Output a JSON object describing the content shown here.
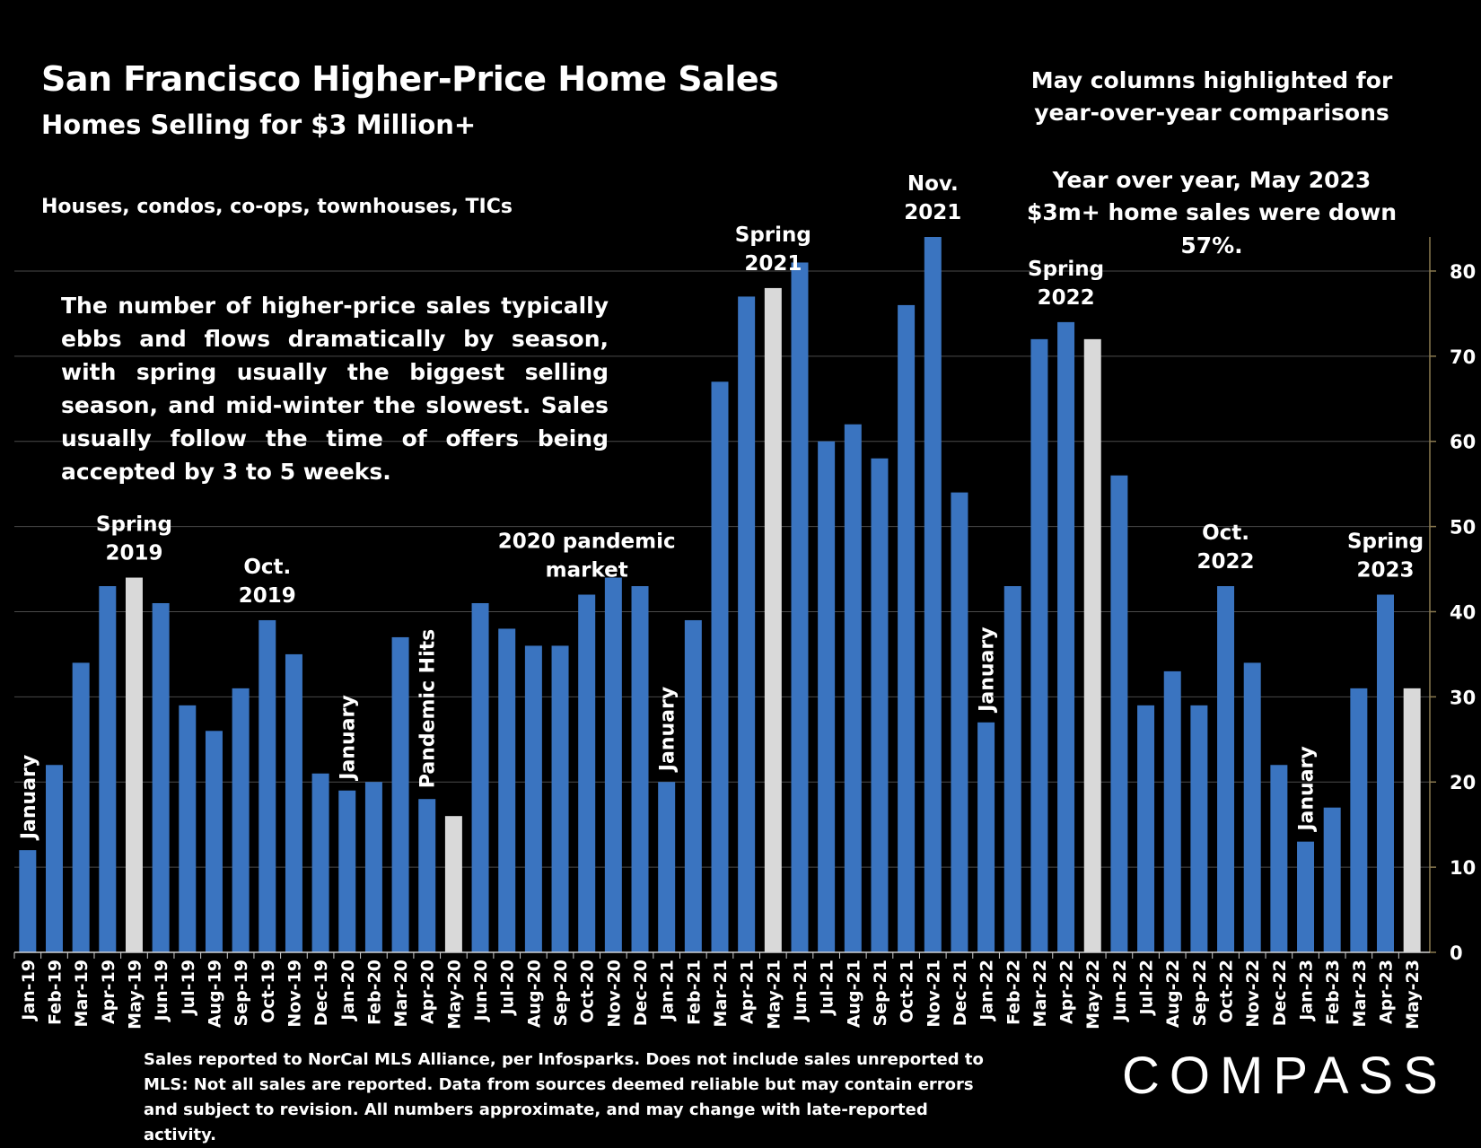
{
  "header": {
    "title": "San Francisco Higher-Price Home Sales",
    "subtitle": "Homes Selling for $3 Million+",
    "scope": "Houses, condos, co-ops, townhouses, TICs"
  },
  "notes": {
    "may_highlight": "May columns highlighted for year-over-year comparisons",
    "yoy": "Year over year, May 2023 $3m+ home sales were down 57%.",
    "explanation": "The number of higher-price sales typically ebbs and flows dramatically by season, with spring usually the biggest selling season, and mid-winter the slowest. Sales usually follow the time of offers being accepted by 3 to 5 weeks."
  },
  "footer": {
    "source": "Sales reported to NorCal MLS Alliance, per Infosparks. Does not include sales unreported to MLS: Not all sales are reported. Data from sources deemed reliable but may contain errors and subject to revision.  All numbers approximate, and may change with late-reported activity.",
    "logo": "COMPASS"
  },
  "colors": {
    "bar": "#3a74c0",
    "highlight": "#d9d9d9",
    "background": "#000000",
    "grid": "#4a4a4a",
    "right_axis": "#8a7a50"
  },
  "chart_data": {
    "type": "bar",
    "categories": [
      "Jan-19",
      "Feb-19",
      "Mar-19",
      "Apr-19",
      "May-19",
      "Jun-19",
      "Jul-19",
      "Aug-19",
      "Sep-19",
      "Oct-19",
      "Nov-19",
      "Dec-19",
      "Jan-20",
      "Feb-20",
      "Mar-20",
      "Apr-20",
      "May-20",
      "Jun-20",
      "Jul-20",
      "Aug-20",
      "Sep-20",
      "Oct-20",
      "Nov-20",
      "Dec-20",
      "Jan-21",
      "Feb-21",
      "Mar-21",
      "Apr-21",
      "May-21",
      "Jun-21",
      "Jul-21",
      "Aug-21",
      "Sep-21",
      "Oct-21",
      "Nov-21",
      "Dec-21",
      "Jan-22",
      "Feb-22",
      "Mar-22",
      "Apr-22",
      "May-22",
      "Jun-22",
      "Jul-22",
      "Aug-22",
      "Sep-22",
      "Oct-22",
      "Nov-22",
      "Dec-22",
      "Jan-23",
      "Feb-23",
      "Mar-23",
      "Apr-23",
      "May-23"
    ],
    "values": [
      12,
      22,
      34,
      43,
      44,
      41,
      29,
      26,
      31,
      39,
      35,
      21,
      19,
      20,
      37,
      18,
      16,
      41,
      38,
      36,
      36,
      42,
      44,
      43,
      20,
      39,
      67,
      77,
      78,
      81,
      60,
      62,
      58,
      76,
      84,
      54,
      27,
      43,
      72,
      74,
      72,
      56,
      29,
      33,
      29,
      43,
      34,
      22,
      13,
      17,
      31,
      42,
      31
    ],
    "highlighted": [
      "May-19",
      "May-20",
      "May-21",
      "May-22",
      "May-23"
    ],
    "ylim": [
      0,
      84
    ],
    "yticks": [
      0,
      10,
      20,
      30,
      40,
      50,
      60,
      70,
      80
    ],
    "y_axis_side": "right",
    "grid": true,
    "annotations": [
      {
        "lines": [
          "January"
        ],
        "category": "Jan-19",
        "orientation": "vertical"
      },
      {
        "lines": [
          "Spring",
          "2019"
        ],
        "category": "May-19",
        "orientation": "horizontal"
      },
      {
        "lines": [
          "Oct.",
          "2019"
        ],
        "category": "Oct-19",
        "orientation": "horizontal"
      },
      {
        "lines": [
          "January"
        ],
        "category": "Jan-20",
        "orientation": "vertical"
      },
      {
        "lines": [
          "Pandemic Hits"
        ],
        "category": "Apr-20",
        "orientation": "vertical"
      },
      {
        "lines": [
          "2020 pandemic",
          "market"
        ],
        "category": "Oct-20",
        "orientation": "horizontal"
      },
      {
        "lines": [
          "January"
        ],
        "category": "Jan-21",
        "orientation": "vertical"
      },
      {
        "lines": [
          "Spring",
          "2021"
        ],
        "category": "May-21",
        "orientation": "horizontal"
      },
      {
        "lines": [
          "Nov.",
          "2021"
        ],
        "category": "Nov-21",
        "orientation": "horizontal"
      },
      {
        "lines": [
          "January"
        ],
        "category": "Jan-22",
        "orientation": "vertical"
      },
      {
        "lines": [
          "Spring",
          "2022"
        ],
        "category": "Apr-22",
        "orientation": "horizontal"
      },
      {
        "lines": [
          "Oct.",
          "2022"
        ],
        "category": "Oct-22",
        "orientation": "horizontal"
      },
      {
        "lines": [
          "January"
        ],
        "category": "Jan-23",
        "orientation": "vertical"
      },
      {
        "lines": [
          "Spring",
          "2023"
        ],
        "category": "Apr-23",
        "orientation": "horizontal"
      }
    ]
  }
}
